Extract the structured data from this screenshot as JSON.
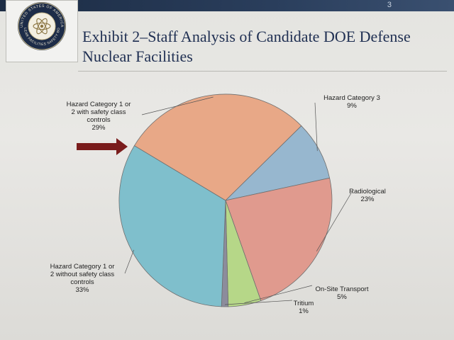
{
  "page_number": "3",
  "seal": {
    "top_text": "UNITED STATES OF AMERICA",
    "bottom_text": "NUCLEAR FACILITIES SAFETY BOARD",
    "icon": "atom-icon"
  },
  "title": {
    "line1": "Exhibit 2–Staff Analysis of Candidate DOE Defense",
    "line2": "Nuclear Facilities"
  },
  "colors": {
    "hc1_with": "#e8a887",
    "hc3": "#97b7cf",
    "radiological": "#e09a8e",
    "onsite": "#b6d788",
    "tritium": "#8c8c9c",
    "hc1_without": "#7fbfcc",
    "arrow": "#7a1c1c"
  },
  "chart_data": {
    "type": "pie",
    "title": "",
    "slices": [
      {
        "label": [
          "Hazard Category 1 or",
          "2 with safety class",
          "controls"
        ],
        "value": 29,
        "pct_label": "29%"
      },
      {
        "label": [
          "Hazard Category 3"
        ],
        "value": 9,
        "pct_label": "9%"
      },
      {
        "label": [
          "Radiological"
        ],
        "value": 23,
        "pct_label": "23%"
      },
      {
        "label": [
          "On-Site Transport"
        ],
        "value": 5,
        "pct_label": "5%"
      },
      {
        "label": [
          "Tritium"
        ],
        "value": 1,
        "pct_label": "1%"
      },
      {
        "label": [
          "Hazard Category 1 or",
          "2 without safety class",
          "controls"
        ],
        "value": 33,
        "pct_label": "33%"
      }
    ],
    "highlighted_slice": 0,
    "legend": "none"
  }
}
